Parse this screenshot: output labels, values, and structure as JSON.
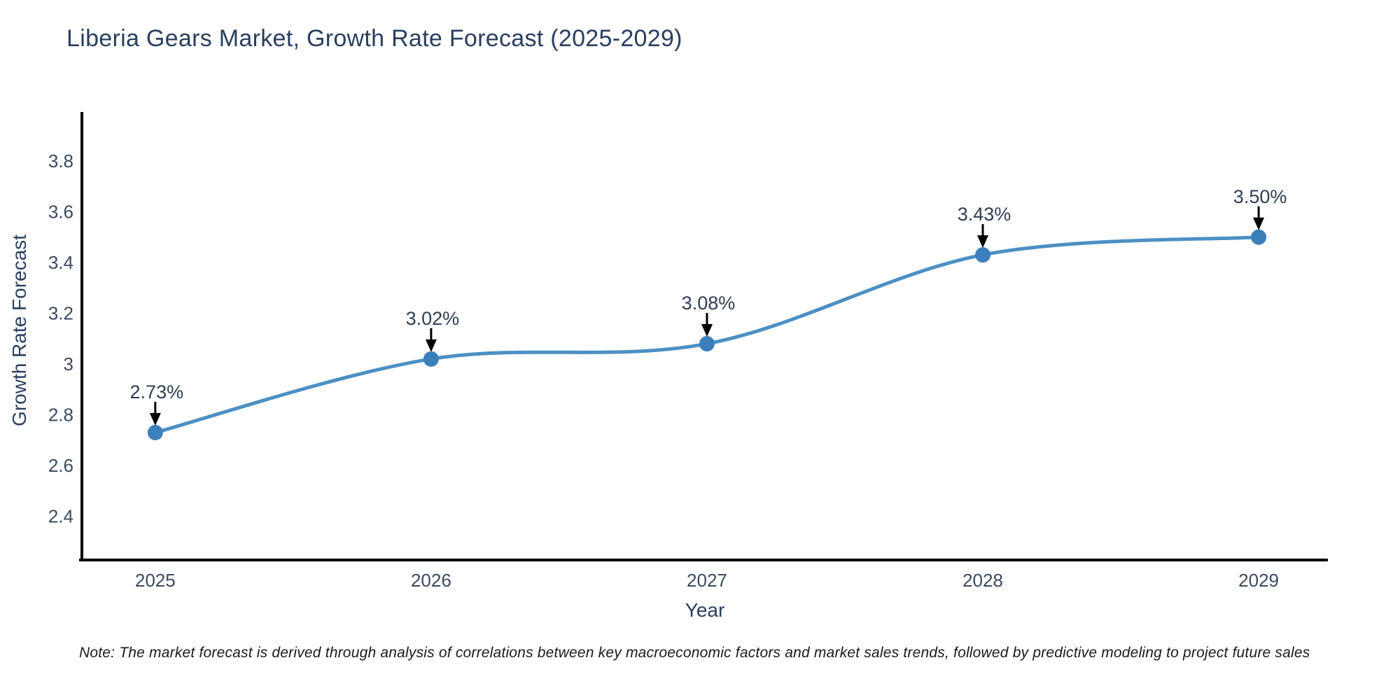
{
  "note": "Note: The market forecast is derived through analysis of correlations between key macroeconomic factors and market sales trends, followed by predictive modeling to project future sales",
  "colors": {
    "background": "#ffffff",
    "title_text": "#2a3f5f",
    "tick_text": "#3b4a5f",
    "annotation_text": "#2f3e52",
    "note_text": "#1a1a1a",
    "axis_line": "#000000",
    "series_line": "#4c8fc4",
    "marker_fill": "#3c80bb",
    "arrow": "#000000"
  },
  "chart_data": {
    "type": "line",
    "title": "Liberia Gears Market, Growth Rate Forecast (2025-2029)",
    "xlabel": "Year",
    "ylabel": "Growth Rate Forecast",
    "x": [
      2025,
      2026,
      2027,
      2028,
      2029
    ],
    "categories": [
      "2025",
      "2026",
      "2027",
      "2028",
      "2029"
    ],
    "values": [
      2.73,
      3.02,
      3.08,
      3.43,
      3.5
    ],
    "point_labels": [
      "2.73%",
      "3.02%",
      "3.08%",
      "3.43%",
      "3.50%"
    ],
    "ytick_values": [
      2.4,
      2.6,
      2.8,
      3.0,
      3.2,
      3.4,
      3.6,
      3.8
    ],
    "ytick_labels": [
      "2.4",
      "2.6",
      "2.8",
      "3",
      "3.2",
      "3.4",
      "3.6",
      "3.8"
    ],
    "xlim": [
      2024.734,
      2029.251
    ],
    "ylim": [
      2.228,
      3.993
    ],
    "grid": false,
    "legend": false,
    "line_shape": "spline",
    "marker": "circle",
    "annotation_arrows": true
  }
}
